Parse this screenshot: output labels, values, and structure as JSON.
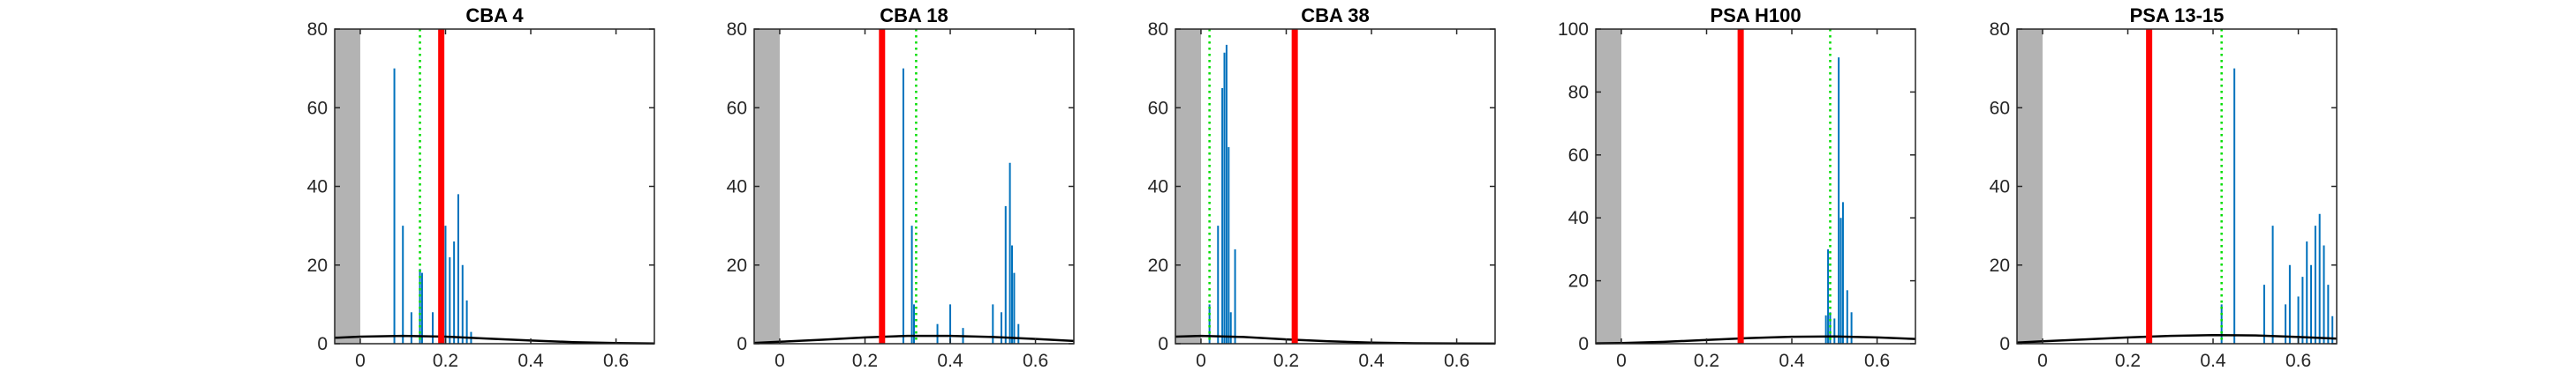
{
  "colors": {
    "blue": "#0072BD",
    "red": "#FF0000",
    "green": "#00DD00",
    "black": "#000000",
    "gray": "#B3B3B3"
  },
  "chart_data": [
    {
      "type": "line",
      "title": "CBA 4",
      "xlim": [
        -0.06,
        0.69
      ],
      "ylim": [
        0,
        80
      ],
      "xticks": [
        0,
        0.2,
        0.4,
        0.6
      ],
      "xtick_labels": [
        "0",
        "0.2",
        "0.4",
        "0.6"
      ],
      "yticks": [
        0,
        20,
        40,
        60,
        80
      ],
      "ytick_labels": [
        "0",
        "20",
        "40",
        "60",
        "80"
      ],
      "gray_band": [
        -0.06,
        0.0
      ],
      "red_line_x": 0.19,
      "green_line_x": 0.14,
      "spikes": [
        {
          "x": 0.08,
          "y": 70
        },
        {
          "x": 0.1,
          "y": 30
        },
        {
          "x": 0.12,
          "y": 8
        },
        {
          "x": 0.14,
          "y": 19
        },
        {
          "x": 0.145,
          "y": 18
        },
        {
          "x": 0.17,
          "y": 8
        },
        {
          "x": 0.2,
          "y": 30
        },
        {
          "x": 0.21,
          "y": 22
        },
        {
          "x": 0.22,
          "y": 26
        },
        {
          "x": 0.23,
          "y": 38
        },
        {
          "x": 0.24,
          "y": 20
        },
        {
          "x": 0.25,
          "y": 11
        },
        {
          "x": 0.26,
          "y": 3
        }
      ],
      "curve": {
        "x": [
          -0.06,
          0.0,
          0.1,
          0.2,
          0.3,
          0.4,
          0.5,
          0.6,
          0.69
        ],
        "y": [
          1.5,
          1.8,
          2.0,
          1.8,
          1.3,
          0.8,
          0.4,
          0.15,
          0.05
        ]
      }
    },
    {
      "type": "line",
      "title": "CBA 18",
      "xlim": [
        -0.06,
        0.69
      ],
      "ylim": [
        0,
        80
      ],
      "xticks": [
        0,
        0.2,
        0.4,
        0.6
      ],
      "xtick_labels": [
        "0",
        "0.2",
        "0.4",
        "0.6"
      ],
      "yticks": [
        0,
        20,
        40,
        60,
        80
      ],
      "ytick_labels": [
        "0",
        "20",
        "40",
        "60",
        "80"
      ],
      "gray_band": [
        -0.06,
        0.0
      ],
      "red_line_x": 0.24,
      "green_line_x": 0.32,
      "spikes": [
        {
          "x": 0.29,
          "y": 70
        },
        {
          "x": 0.31,
          "y": 30
        },
        {
          "x": 0.315,
          "y": 10
        },
        {
          "x": 0.37,
          "y": 5
        },
        {
          "x": 0.4,
          "y": 10
        },
        {
          "x": 0.43,
          "y": 4
        },
        {
          "x": 0.5,
          "y": 10
        },
        {
          "x": 0.52,
          "y": 8
        },
        {
          "x": 0.53,
          "y": 35
        },
        {
          "x": 0.54,
          "y": 46
        },
        {
          "x": 0.545,
          "y": 25
        },
        {
          "x": 0.55,
          "y": 18
        },
        {
          "x": 0.56,
          "y": 5
        }
      ],
      "curve": {
        "x": [
          -0.06,
          0.0,
          0.1,
          0.2,
          0.3,
          0.4,
          0.5,
          0.6,
          0.69
        ],
        "y": [
          0.2,
          0.5,
          1.0,
          1.6,
          2.0,
          2.0,
          1.7,
          1.2,
          0.7
        ]
      }
    },
    {
      "type": "line",
      "title": "CBA 38",
      "xlim": [
        -0.06,
        0.69
      ],
      "ylim": [
        0,
        80
      ],
      "xticks": [
        0,
        0.2,
        0.4,
        0.6
      ],
      "xtick_labels": [
        "0",
        "0.2",
        "0.4",
        "0.6"
      ],
      "yticks": [
        0,
        20,
        40,
        60,
        80
      ],
      "ytick_labels": [
        "0",
        "20",
        "40",
        "60",
        "80"
      ],
      "gray_band": [
        -0.06,
        0.0
      ],
      "red_line_x": 0.22,
      "green_line_x": 0.02,
      "spikes": [
        {
          "x": 0.02,
          "y": 10
        },
        {
          "x": 0.04,
          "y": 30
        },
        {
          "x": 0.05,
          "y": 65
        },
        {
          "x": 0.055,
          "y": 74
        },
        {
          "x": 0.06,
          "y": 76
        },
        {
          "x": 0.065,
          "y": 50
        },
        {
          "x": 0.07,
          "y": 8
        },
        {
          "x": 0.08,
          "y": 24
        }
      ],
      "curve": {
        "x": [
          -0.06,
          0.0,
          0.1,
          0.2,
          0.3,
          0.4,
          0.5,
          0.6,
          0.69
        ],
        "y": [
          1.8,
          2.0,
          1.7,
          1.1,
          0.6,
          0.3,
          0.12,
          0.05,
          0.02
        ]
      }
    },
    {
      "type": "line",
      "title": "PSA H100",
      "xlim": [
        -0.06,
        0.69
      ],
      "ylim": [
        0,
        100
      ],
      "xticks": [
        0,
        0.2,
        0.4,
        0.6
      ],
      "xtick_labels": [
        "0",
        "0.2",
        "0.4",
        "0.6"
      ],
      "yticks": [
        0,
        20,
        40,
        60,
        80,
        100
      ],
      "ytick_labels": [
        "0",
        "20",
        "40",
        "60",
        "80",
        "100"
      ],
      "gray_band": [
        -0.06,
        0.0
      ],
      "red_line_x": 0.28,
      "green_line_x": 0.49,
      "spikes": [
        {
          "x": 0.48,
          "y": 9
        },
        {
          "x": 0.485,
          "y": 30
        },
        {
          "x": 0.49,
          "y": 10
        },
        {
          "x": 0.5,
          "y": 8
        },
        {
          "x": 0.51,
          "y": 91
        },
        {
          "x": 0.515,
          "y": 40
        },
        {
          "x": 0.52,
          "y": 45
        },
        {
          "x": 0.53,
          "y": 17
        },
        {
          "x": 0.54,
          "y": 10
        }
      ],
      "curve": {
        "x": [
          -0.06,
          0.0,
          0.1,
          0.2,
          0.3,
          0.4,
          0.5,
          0.6,
          0.69
        ],
        "y": [
          0.1,
          0.2,
          0.6,
          1.2,
          1.8,
          2.2,
          2.3,
          2.0,
          1.5
        ]
      }
    },
    {
      "type": "line",
      "title": "PSA 13-15",
      "xlim": [
        -0.06,
        0.69
      ],
      "ylim": [
        0,
        80
      ],
      "xticks": [
        0,
        0.2,
        0.4,
        0.6
      ],
      "xtick_labels": [
        "0",
        "0.2",
        "0.4",
        "0.6"
      ],
      "yticks": [
        0,
        20,
        40,
        60,
        80
      ],
      "ytick_labels": [
        "0",
        "20",
        "40",
        "60",
        "80"
      ],
      "gray_band": [
        -0.06,
        0.0
      ],
      "red_line_x": 0.25,
      "green_line_x": 0.42,
      "spikes": [
        {
          "x": 0.42,
          "y": 10
        },
        {
          "x": 0.45,
          "y": 70
        },
        {
          "x": 0.52,
          "y": 15
        },
        {
          "x": 0.54,
          "y": 30
        },
        {
          "x": 0.57,
          "y": 10
        },
        {
          "x": 0.58,
          "y": 20
        },
        {
          "x": 0.6,
          "y": 12
        },
        {
          "x": 0.61,
          "y": 17
        },
        {
          "x": 0.62,
          "y": 26
        },
        {
          "x": 0.63,
          "y": 20
        },
        {
          "x": 0.64,
          "y": 30
        },
        {
          "x": 0.65,
          "y": 33
        },
        {
          "x": 0.66,
          "y": 25
        },
        {
          "x": 0.67,
          "y": 15
        },
        {
          "x": 0.68,
          "y": 7
        }
      ],
      "curve": {
        "x": [
          -0.06,
          0.0,
          0.1,
          0.2,
          0.3,
          0.4,
          0.5,
          0.6,
          0.69
        ],
        "y": [
          0.3,
          0.6,
          1.1,
          1.6,
          2.0,
          2.2,
          2.1,
          1.7,
          1.3
        ]
      }
    }
  ]
}
